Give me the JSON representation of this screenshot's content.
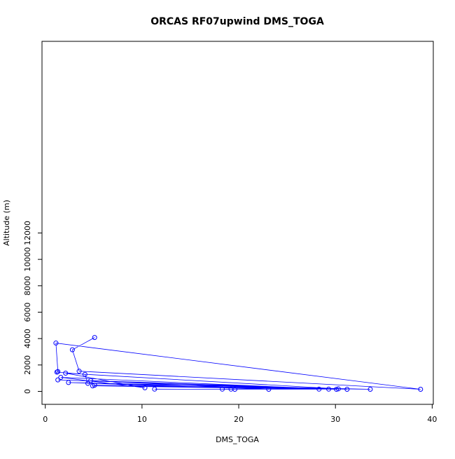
{
  "chart_data": {
    "type": "line",
    "title": "ORCAS RF07upwind DMS_TOGA",
    "xlabel": "DMS_TOGA",
    "ylabel": "Altitude (m)",
    "xlim": [
      0,
      40
    ],
    "ylim": [
      0,
      13000
    ],
    "x_ticks": [
      0,
      10,
      20,
      30,
      40
    ],
    "x_tick_labels": [
      "0",
      "10",
      "20",
      "30",
      "40"
    ],
    "y_ticks": [
      0,
      2000,
      4000,
      6000,
      8000,
      10000,
      12000
    ],
    "y_tick_labels": [
      "0",
      "2000",
      "4000",
      "6000",
      "8000",
      "10000",
      "12000"
    ],
    "grid": false,
    "markers": "open-circle",
    "series_color": "#0000ff",
    "series": [
      {
        "points": [
          {
            "x": 5.1,
            "y": 4080
          },
          {
            "x": 2.8,
            "y": 3150
          },
          {
            "x": 3.5,
            "y": 1530
          },
          {
            "x": 38.8,
            "y": 160
          },
          {
            "x": 1.1,
            "y": 3660
          },
          {
            "x": 1.3,
            "y": 1500
          },
          {
            "x": 1.2,
            "y": 1460
          },
          {
            "x": 4.1,
            "y": 1290
          },
          {
            "x": 4.4,
            "y": 610
          },
          {
            "x": 30.3,
            "y": 190
          },
          {
            "x": 2.1,
            "y": 1380
          },
          {
            "x": 10.3,
            "y": 270
          },
          {
            "x": 1.6,
            "y": 1060
          },
          {
            "x": 29.3,
            "y": 170
          },
          {
            "x": 1.3,
            "y": 870
          },
          {
            "x": 31.2,
            "y": 160
          },
          {
            "x": 4.7,
            "y": 810
          },
          {
            "x": 23.1,
            "y": 160
          },
          {
            "x": 2.4,
            "y": 670
          },
          {
            "x": 33.6,
            "y": 160
          },
          {
            "x": 5.1,
            "y": 470
          },
          {
            "x": 30.1,
            "y": 160
          },
          {
            "x": 4.9,
            "y": 420
          },
          {
            "x": 28.3,
            "y": 170
          },
          {
            "x": 18.3,
            "y": 170
          },
          {
            "x": 19.2,
            "y": 170
          },
          {
            "x": 19.6,
            "y": 160
          },
          {
            "x": 11.3,
            "y": 170
          }
        ]
      }
    ]
  }
}
